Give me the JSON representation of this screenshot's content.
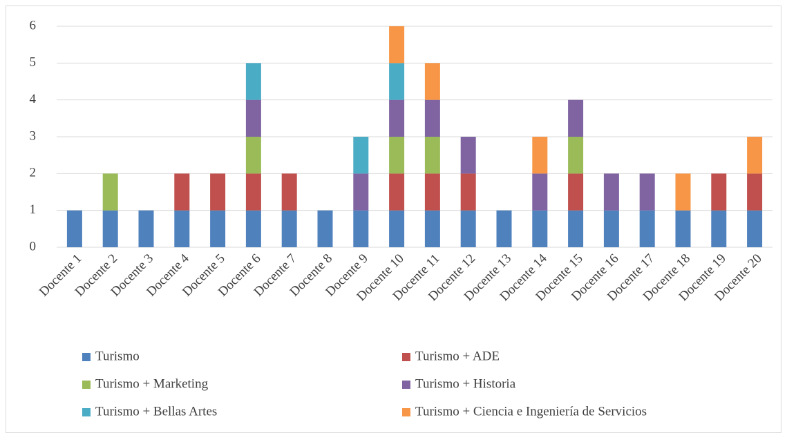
{
  "chart_data": {
    "type": "stacked_bar",
    "categories": [
      "Docente 1",
      "Docente 2",
      "Docente 3",
      "Docente 4",
      "Docente 5",
      "Docente 6",
      "Docente 7",
      "Docente 8",
      "Docente 9",
      "Docente 10",
      "Docente 11",
      "Docente 12",
      "Docente 13",
      "Docente 14",
      "Docente 15",
      "Docente 16",
      "Docente 17",
      "Docente 18",
      "Docente 19",
      "Docente 20"
    ],
    "series": [
      {
        "name": "Turismo",
        "color": "#4f81bd",
        "values": [
          1,
          1,
          1,
          1,
          1,
          1,
          1,
          1,
          1,
          1,
          1,
          1,
          1,
          1,
          1,
          1,
          1,
          1,
          1,
          1
        ]
      },
      {
        "name": "Turismo + ADE",
        "color": "#c0504d",
        "values": [
          0,
          0,
          0,
          1,
          1,
          1,
          1,
          0,
          0,
          1,
          1,
          1,
          0,
          0,
          1,
          0,
          0,
          0,
          1,
          1
        ]
      },
      {
        "name": "Turismo + Marketing",
        "color": "#9bbb59",
        "values": [
          0,
          1,
          0,
          0,
          0,
          1,
          0,
          0,
          0,
          1,
          1,
          0,
          0,
          0,
          1,
          0,
          0,
          0,
          0,
          0
        ]
      },
      {
        "name": "Turismo + Historia",
        "color": "#8064a2",
        "values": [
          0,
          0,
          0,
          0,
          0,
          1,
          0,
          0,
          1,
          1,
          1,
          1,
          0,
          1,
          1,
          1,
          1,
          0,
          0,
          0
        ]
      },
      {
        "name": "Turismo + Bellas Artes",
        "color": "#4bacc6",
        "values": [
          0,
          0,
          0,
          0,
          0,
          1,
          0,
          0,
          1,
          1,
          0,
          0,
          0,
          0,
          0,
          0,
          0,
          0,
          0,
          0
        ]
      },
      {
        "name": "Turismo + Ciencia e Ingeniería de Servicios",
        "color": "#f79646",
        "values": [
          0,
          0,
          0,
          0,
          0,
          0,
          0,
          0,
          0,
          1,
          1,
          0,
          0,
          1,
          0,
          0,
          0,
          1,
          0,
          1
        ]
      }
    ],
    "ylim": [
      0,
      6
    ],
    "yticks": [
      0,
      1,
      2,
      3,
      4,
      5,
      6
    ],
    "grid": true,
    "legend": "bottom"
  }
}
